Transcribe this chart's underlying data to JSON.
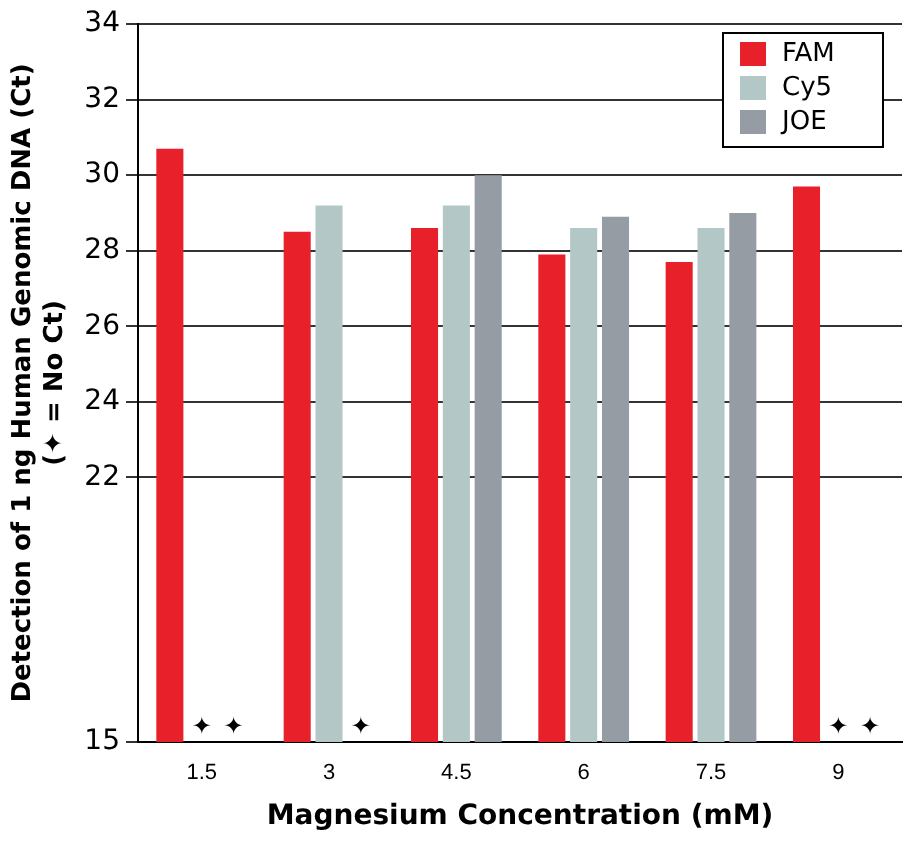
{
  "chart_data": {
    "type": "bar",
    "xlabel": "Magnesium Concentration (mM)",
    "ylabel": "Detection of 1 ng Human Genomic DNA (Ct)\n(✦ = No Ct)",
    "categories": [
      "1.5",
      "3",
      "4.5",
      "6",
      "7.5",
      "9"
    ],
    "series": [
      {
        "name": "FAM",
        "color": "#e8202a",
        "values": [
          30.7,
          28.5,
          28.6,
          27.9,
          27.7,
          29.7
        ]
      },
      {
        "name": "Cy5",
        "color": "#b3c7c7",
        "values": [
          null,
          29.2,
          29.2,
          28.6,
          28.6,
          null
        ],
        "value_labels": [
          "✦",
          null,
          null,
          null,
          null,
          "✦"
        ]
      },
      {
        "name": "JOE",
        "color": "#959ca3",
        "values": [
          null,
          null,
          30.0,
          28.9,
          29.0,
          null
        ],
        "value_labels": [
          "✦",
          "✦",
          null,
          null,
          null,
          "✦"
        ]
      }
    ],
    "ylim": [
      15,
      34
    ],
    "yticks": [
      15,
      22,
      24,
      26,
      28,
      30,
      32,
      34
    ],
    "grid": "y",
    "legend": "top right"
  }
}
